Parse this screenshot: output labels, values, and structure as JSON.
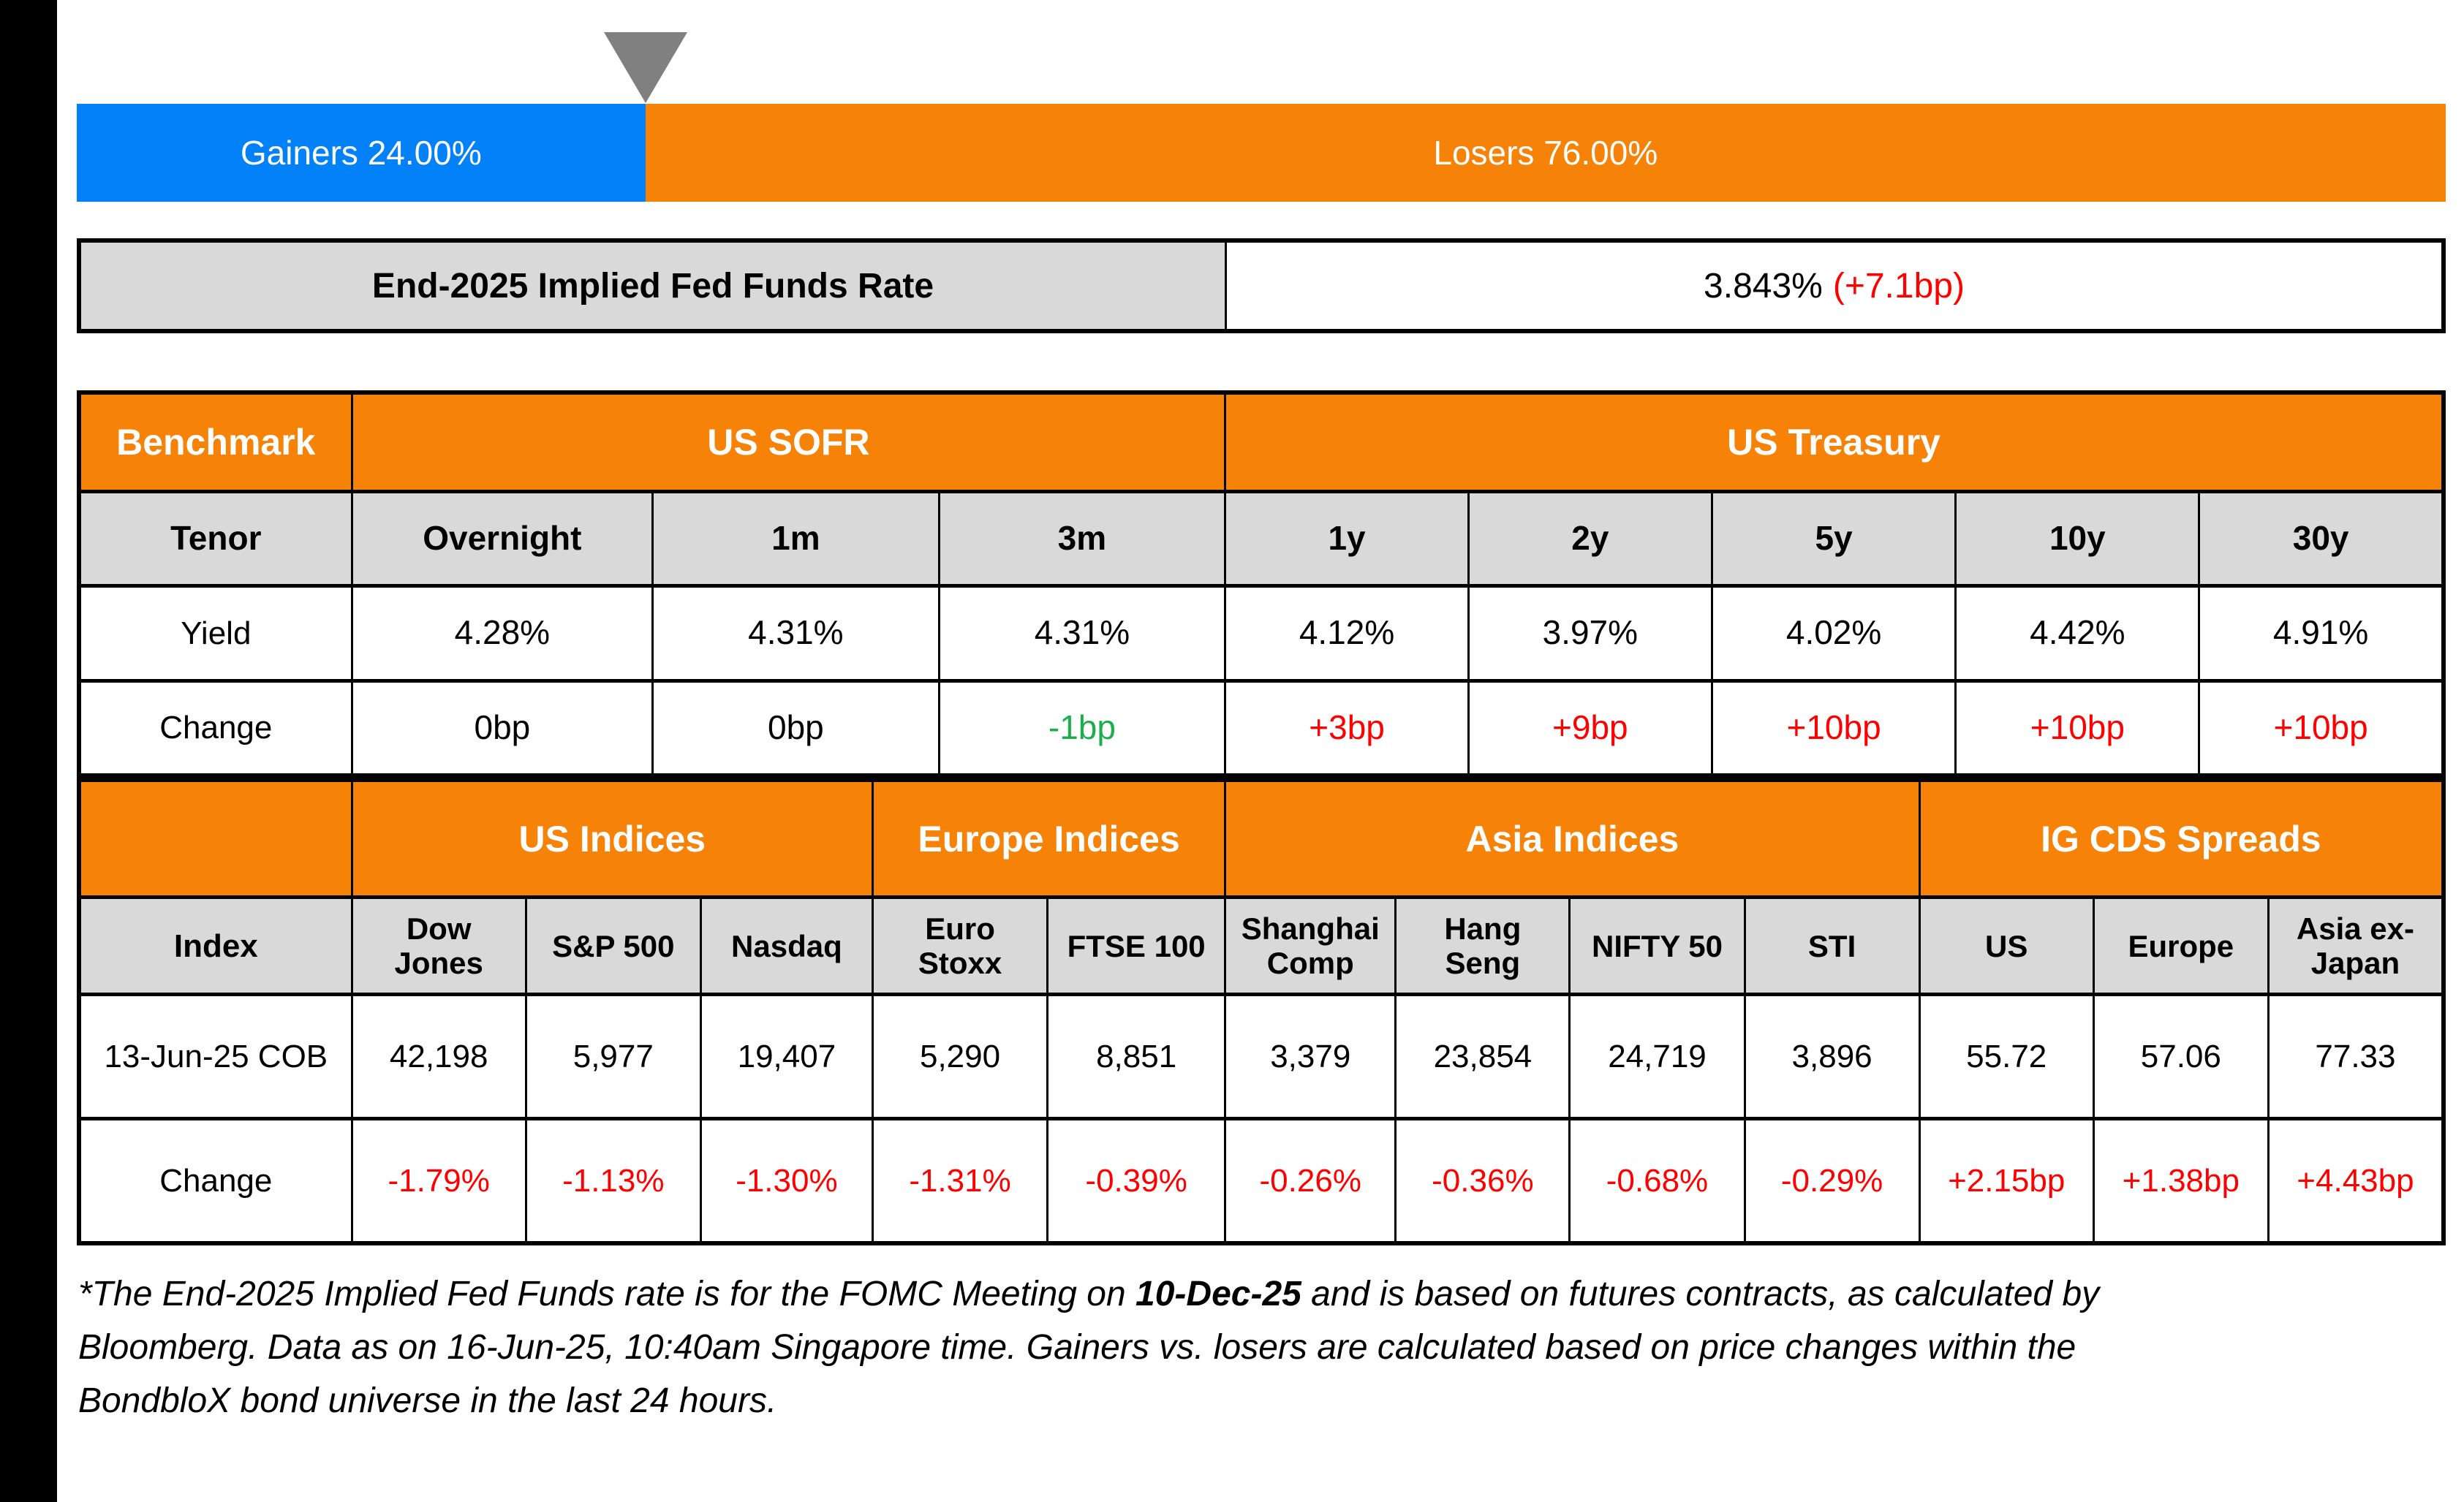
{
  "gauge": {
    "gainers_label": "Gainers 24.00%",
    "losers_label": "Losers 76.00%",
    "gainers_pct": 24.0,
    "losers_pct": 76.0
  },
  "fed_funds": {
    "label": "End-2025 Implied Fed Funds Rate",
    "value": "3.843%",
    "change": "(+7.1bp)"
  },
  "benchmark_table": {
    "corner_label": "Benchmark",
    "groups": {
      "sofr": "US SOFR",
      "treasury": "US Treasury"
    },
    "row_labels": {
      "tenor": "Tenor",
      "yield": "Yield",
      "change": "Change"
    },
    "tenors": [
      "Overnight",
      "1m",
      "3m",
      "1y",
      "2y",
      "5y",
      "10y",
      "30y"
    ],
    "yields": [
      "4.28%",
      "4.31%",
      "4.31%",
      "4.12%",
      "3.97%",
      "4.02%",
      "4.42%",
      "4.91%"
    ],
    "changes": [
      "0bp",
      "0bp",
      "-1bp",
      "+3bp",
      "+9bp",
      "+10bp",
      "+10bp",
      "+10bp"
    ]
  },
  "indices_table": {
    "corner_label": "",
    "groups": {
      "us": "US Indices",
      "europe": "Europe Indices",
      "asia": "Asia Indices",
      "cds": "IG CDS Spreads"
    },
    "row_labels": {
      "index": "Index",
      "date": "13-Jun-25 COB",
      "change": "Change"
    },
    "columns": [
      "Dow Jones",
      "S&P 500",
      "Nasdaq",
      "Euro Stoxx",
      "FTSE 100",
      "Shanghai Comp",
      "Hang Seng",
      "NIFTY 50",
      "STI",
      "US",
      "Europe",
      "Asia ex-Japan"
    ],
    "values": [
      "42,198",
      "5,977",
      "19,407",
      "5,290",
      "8,851",
      "3,379",
      "23,854",
      "24,719",
      "3,896",
      "55.72",
      "57.06",
      "77.33"
    ],
    "changes": [
      "-1.79%",
      "-1.13%",
      "-1.30%",
      "-1.31%",
      "-0.39%",
      "-0.26%",
      "-0.36%",
      "-0.68%",
      "-0.29%",
      "+2.15bp",
      "+1.38bp",
      "+4.43bp"
    ]
  },
  "footnote": {
    "line1_pre": "*The End-2025 Implied Fed Funds rate is for the FOMC Meeting on ",
    "line1_bold": "10-Dec-25",
    "line1_post": " and is based on futures contracts, as calculated by",
    "line2": "Bloomberg. Data as on 16-Jun-25, 10:40am Singapore time. Gainers vs. losers are calculated based on price changes within the",
    "line3": "BondbloX bond universe in the last 24 hours."
  },
  "palette": {
    "blue": "#0381F8",
    "orange": "#F68208",
    "gray-cell": "#D9D9D9",
    "green": "#1CAE4C",
    "red": "#FF0000",
    "triangle-gray": "#808080"
  }
}
